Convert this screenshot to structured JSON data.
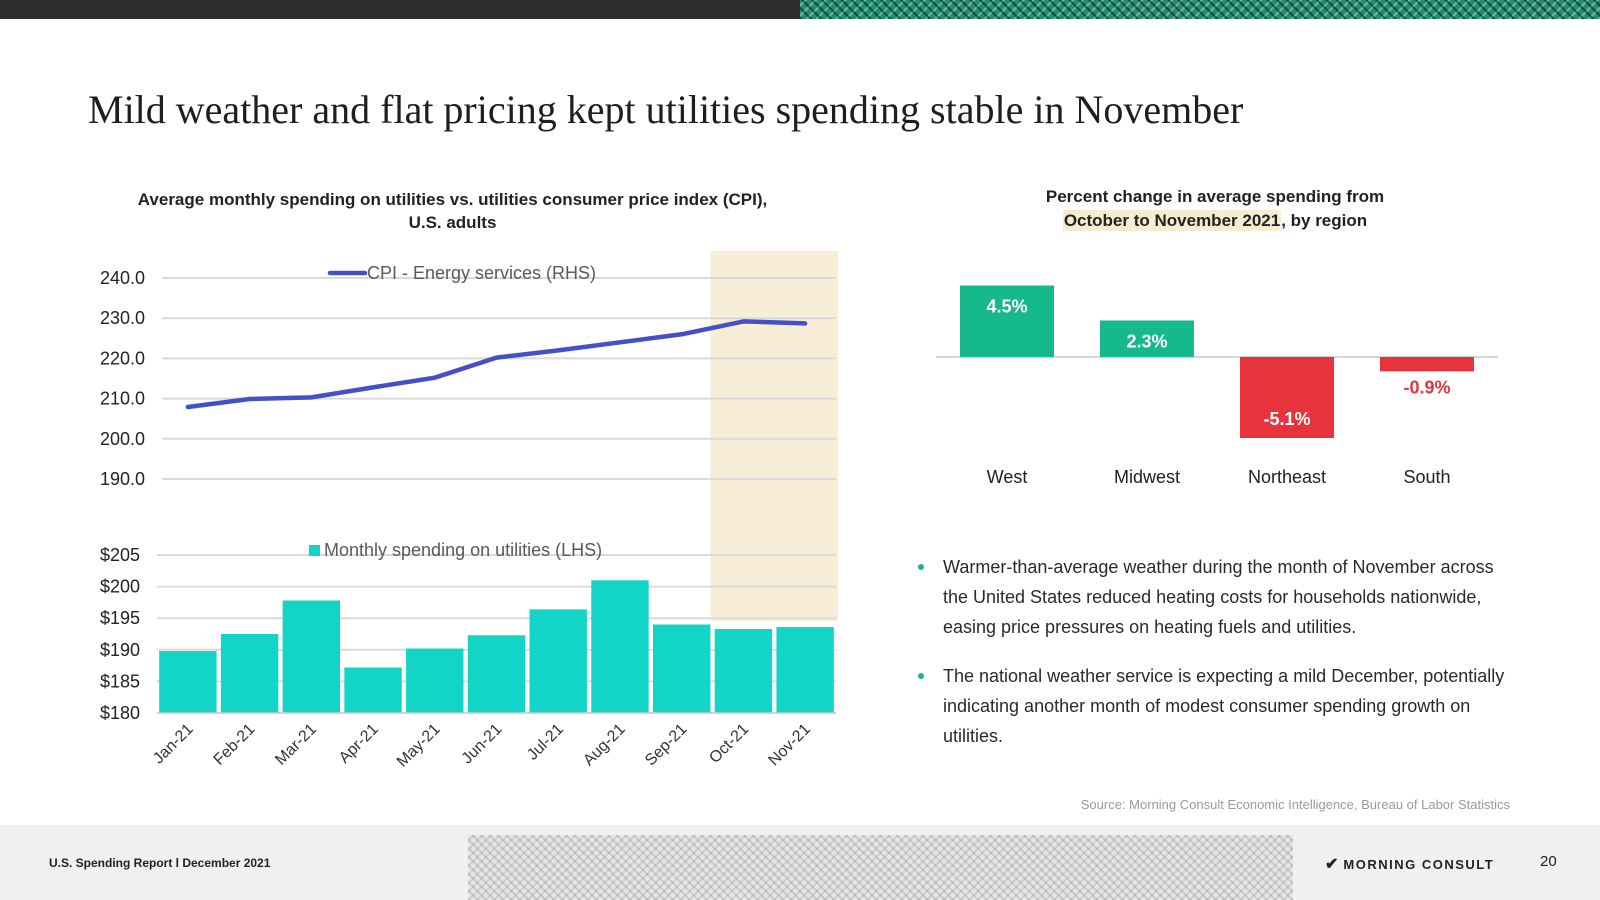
{
  "page": {
    "title": "Mild weather and flat pricing kept utilities spending stable in November"
  },
  "chart_data": [
    {
      "type": "line",
      "title": "Average monthly spending on utilities vs. utilities consumer price index (CPI), U.S. adults",
      "categories": [
        "Jan-21",
        "Feb-21",
        "Mar-21",
        "Apr-21",
        "May-21",
        "Jun-21",
        "Jul-21",
        "Aug-21",
        "Sep-21",
        "Oct-21",
        "Nov-21"
      ],
      "series": [
        {
          "name": "CPI - Energy services (RHS)",
          "values": [
            207.9,
            209.9,
            210.3,
            212.8,
            215.2,
            220.2,
            222.0,
            224.0,
            226.0,
            229.2,
            228.7
          ],
          "color": "#4550c8"
        }
      ],
      "yticks": [
        "240.0",
        "230.0",
        "220.0",
        "210.0",
        "200.0",
        "190.0"
      ],
      "ylim": [
        190,
        240
      ],
      "highlight": [
        "Oct-21",
        "Nov-21"
      ],
      "highlight_color": "#f8eed7",
      "grid": true,
      "legend": "top-center"
    },
    {
      "type": "bar",
      "categories": [
        "Jan-21",
        "Feb-21",
        "Mar-21",
        "Apr-21",
        "May-21",
        "Jun-21",
        "Jul-21",
        "Aug-21",
        "Sep-21",
        "Oct-21",
        "Nov-21"
      ],
      "series": [
        {
          "name": "Monthly spending on utilities (LHS)",
          "values": [
            189.8,
            192.5,
            197.8,
            187.2,
            190.2,
            192.3,
            196.4,
            201.0,
            194.0,
            193.3,
            193.6
          ],
          "color": "#12d5c7"
        }
      ],
      "yticks": [
        "$205",
        "$200",
        "$195",
        "$190",
        "$185",
        "$180"
      ],
      "ylim": [
        180,
        205
      ],
      "highlight": [
        "Oct-21",
        "Nov-21"
      ],
      "grid": true,
      "legend": "top-center"
    },
    {
      "type": "bar",
      "title": "Percent change in average spending from October to November 2021, by region",
      "title_highlight": "October to November 2021",
      "categories": [
        "West",
        "Midwest",
        "Northeast",
        "South"
      ],
      "values": [
        4.5,
        2.3,
        -5.1,
        -0.9
      ],
      "labels": [
        "4.5%",
        "2.3%",
        "-5.1%",
        "-0.9%"
      ],
      "positive_color": "#16b98e",
      "negative_color": "#e8333c",
      "ylim": [
        -5.1,
        4.5
      ]
    }
  ],
  "charts": {
    "left": {
      "title_line1": "Average monthly spending on utilities vs. utilities consumer price index (CPI),",
      "title_line2": "U.S. adults"
    },
    "right": {
      "title_line1": "Percent change in average spending from",
      "title_highlight": "October to November 2021",
      "title_rest": ", by region"
    }
  },
  "bullets": [
    "Warmer-than-average weather during the month of November across the United States reduced heating costs for households nationwide, easing price pressures on heating fuels and utilities.",
    "The national weather service is expecting a mild December, potentially indicating another month of modest consumer spending growth on utilities."
  ],
  "source": "Source: Morning Consult Economic Intelligence, Bureau of Labor Statistics",
  "footer": {
    "report_label": "U.S. Spending Report l December 2021",
    "brand": "MORNING CONSULT",
    "brand_mark": "✔",
    "page_number": "20"
  }
}
